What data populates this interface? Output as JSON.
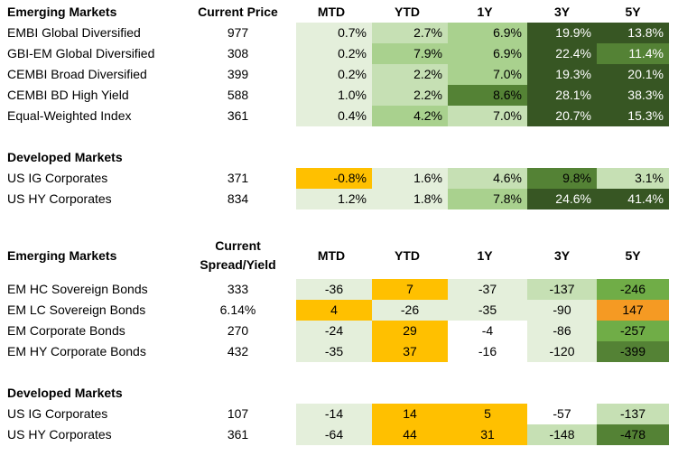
{
  "colors": {
    "lightest_green": "#e4efdb",
    "light_green": "#c6e0b4",
    "mid_green": "#a9d18e",
    "medium_dark_green": "#70ad47",
    "dark_green": "#548235",
    "darkest_green": "#375623",
    "yellow": "#ffc000",
    "orange": "#f59a23"
  },
  "returns": {
    "header": {
      "title": "Emerging Markets",
      "price": "Current Price",
      "mtd": "MTD",
      "ytd": "YTD",
      "y1": "1Y",
      "y3": "3Y",
      "y5": "5Y"
    },
    "em_rows": [
      {
        "name": "EMBI Global Diversified",
        "price": "977",
        "mtd": "0.7%",
        "ytd": "2.7%",
        "y1": "6.9%",
        "y3": "19.9%",
        "y5": "13.8%"
      },
      {
        "name": "GBI-EM Global Diversified",
        "price": "308",
        "mtd": "0.2%",
        "ytd": "7.9%",
        "y1": "6.9%",
        "y3": "22.4%",
        "y5": "11.4%"
      },
      {
        "name": "CEMBI Broad Diversified",
        "price": "399",
        "mtd": "0.2%",
        "ytd": "2.2%",
        "y1": "7.0%",
        "y3": "19.3%",
        "y5": "20.1%"
      },
      {
        "name": "CEMBI BD High Yield",
        "price": "588",
        "mtd": "1.0%",
        "ytd": "2.2%",
        "y1": "8.6%",
        "y3": "28.1%",
        "y5": "38.3%"
      },
      {
        "name": "Equal-Weighted Index",
        "price": "361",
        "mtd": "0.4%",
        "ytd": "4.2%",
        "y1": "7.0%",
        "y3": "20.7%",
        "y5": "15.3%"
      }
    ],
    "dm_title": "Developed Markets",
    "dm_rows": [
      {
        "name": "US IG Corporates",
        "price": "371",
        "mtd": "-0.8%",
        "ytd": "1.6%",
        "y1": "4.6%",
        "y3": "9.8%",
        "y5": "3.1%"
      },
      {
        "name": "US HY Corporates",
        "price": "834",
        "mtd": "1.2%",
        "ytd": "1.8%",
        "y1": "7.8%",
        "y3": "24.6%",
        "y5": "41.4%"
      }
    ]
  },
  "spreads": {
    "header": {
      "title": "Emerging Markets",
      "col_line1": "Current",
      "col_line2": "Spread/Yield",
      "mtd": "MTD",
      "ytd": "YTD",
      "y1": "1Y",
      "y3": "3Y",
      "y5": "5Y"
    },
    "em_rows": [
      {
        "name": "EM HC Sovereign Bonds",
        "value": "333",
        "mtd": "-36",
        "ytd": "7",
        "y1": "-37",
        "y3": "-137",
        "y5": "-246"
      },
      {
        "name": "EM LC Sovereign Bonds",
        "value": "6.14%",
        "mtd": "4",
        "ytd": "-26",
        "y1": "-35",
        "y3": "-90",
        "y5": "147"
      },
      {
        "name": "EM Corporate Bonds",
        "value": "270",
        "mtd": "-24",
        "ytd": "29",
        "y1": "-4",
        "y3": "-86",
        "y5": "-257"
      },
      {
        "name": "EM HY Corporate Bonds",
        "value": "432",
        "mtd": "-35",
        "ytd": "37",
        "y1": "-16",
        "y3": "-120",
        "y5": "-399"
      }
    ],
    "dm_title": "Developed Markets",
    "dm_rows": [
      {
        "name": "US IG Corporates",
        "value": "107",
        "mtd": "-14",
        "ytd": "14",
        "y1": "5",
        "y3": "-57",
        "y5": "-137"
      },
      {
        "name": "US HY Corporates",
        "value": "361",
        "mtd": "-64",
        "ytd": "44",
        "y1": "31",
        "y3": "-148",
        "y5": "-478"
      }
    ]
  }
}
